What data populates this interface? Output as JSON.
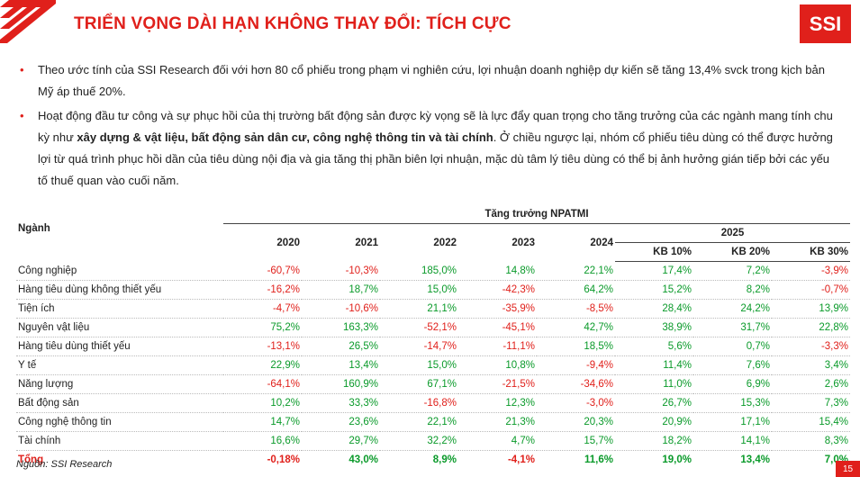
{
  "header": {
    "title": "TRIỂN VỌNG DÀI HẠN KHÔNG THAY ĐỔI: TÍCH CỰC",
    "logo": "SSI"
  },
  "bullets": [
    [
      {
        "text": "Theo ước tính của SSI Research đối với hơn 80 cổ phiếu trong phạm vi nghiên cứu, lợi nhuận doanh nghiệp dự kiến sẽ tăng 13,4% svck trong kịch bản Mỹ áp thuế 20%."
      }
    ],
    [
      {
        "text": "Hoạt động đầu tư công và sự phục hồi của thị trường bất động sản được kỳ vọng sẽ là lực đẩy quan trọng cho tăng trưởng của các ngành mang tính chu kỳ như "
      },
      {
        "text": "xây dựng & vật liệu, bất động sản dân cư, công nghệ thông tin và tài chính",
        "bold": true
      },
      {
        "text": ". Ở chiều ngược lại, nhóm cổ phiếu tiêu dùng có thể được hưởng lợi từ quá trình phục hồi dần của tiêu dùng nội địa và gia tăng thị phần biên lợi nhuận, mặc dù tâm lý tiêu dùng có thể bị ảnh hưởng gián tiếp bởi các yếu tố thuế quan vào cuối năm."
      }
    ]
  ],
  "table": {
    "row_header": "Ngành",
    "group_header": "Tăng trưởng NPATMI",
    "years": [
      "2020",
      "2021",
      "2022",
      "2023",
      "2024"
    ],
    "sub_group": "2025",
    "scenarios": [
      "KB 10%",
      "KB 20%",
      "KB 30%"
    ],
    "rows": [
      [
        "Công nghiệp",
        "-60,7%",
        "-10,3%",
        "185,0%",
        "14,8%",
        "22,1%",
        "17,4%",
        "7,2%",
        "-3,9%"
      ],
      [
        "Hàng tiêu dùng không thiết yếu",
        "-16,2%",
        "18,7%",
        "15,0%",
        "-42,3%",
        "64,2%",
        "15,2%",
        "8,2%",
        "-0,7%"
      ],
      [
        "Tiện ích",
        "-4,7%",
        "-10,6%",
        "21,1%",
        "-35,9%",
        "-8,5%",
        "28,4%",
        "24,2%",
        "13,9%"
      ],
      [
        "Nguyên vật liệu",
        "75,2%",
        "163,3%",
        "-52,1%",
        "-45,1%",
        "42,7%",
        "38,9%",
        "31,7%",
        "22,8%"
      ],
      [
        "Hàng tiêu dùng thiết yếu",
        "-13,1%",
        "26,5%",
        "-14,7%",
        "-11,1%",
        "18,5%",
        "5,6%",
        "0,7%",
        "-3,3%"
      ],
      [
        "Y tế",
        "22,9%",
        "13,4%",
        "15,0%",
        "10,8%",
        "-9,4%",
        "11,4%",
        "7,6%",
        "3,4%"
      ],
      [
        "Năng lượng",
        "-64,1%",
        "160,9%",
        "67,1%",
        "-21,5%",
        "-34,6%",
        "11,0%",
        "6,9%",
        "2,6%"
      ],
      [
        "Bất động sản",
        "10,2%",
        "33,3%",
        "-16,8%",
        "12,3%",
        "-3,0%",
        "26,7%",
        "15,3%",
        "7,3%"
      ],
      [
        "Công nghệ thông tin",
        "14,7%",
        "23,6%",
        "22,1%",
        "21,3%",
        "20,3%",
        "20,9%",
        "17,1%",
        "15,4%"
      ],
      [
        "Tài chính",
        "16,6%",
        "29,7%",
        "32,2%",
        "4,7%",
        "15,7%",
        "18,2%",
        "14,1%",
        "8,3%"
      ]
    ],
    "total": [
      "Tổng",
      "-0,18%",
      "43,0%",
      "8,9%",
      "-4,1%",
      "11,6%",
      "19,0%",
      "13,4%",
      "7,0%"
    ]
  },
  "footer": {
    "source": "Nguồn: SSI Research",
    "page": "15"
  }
}
